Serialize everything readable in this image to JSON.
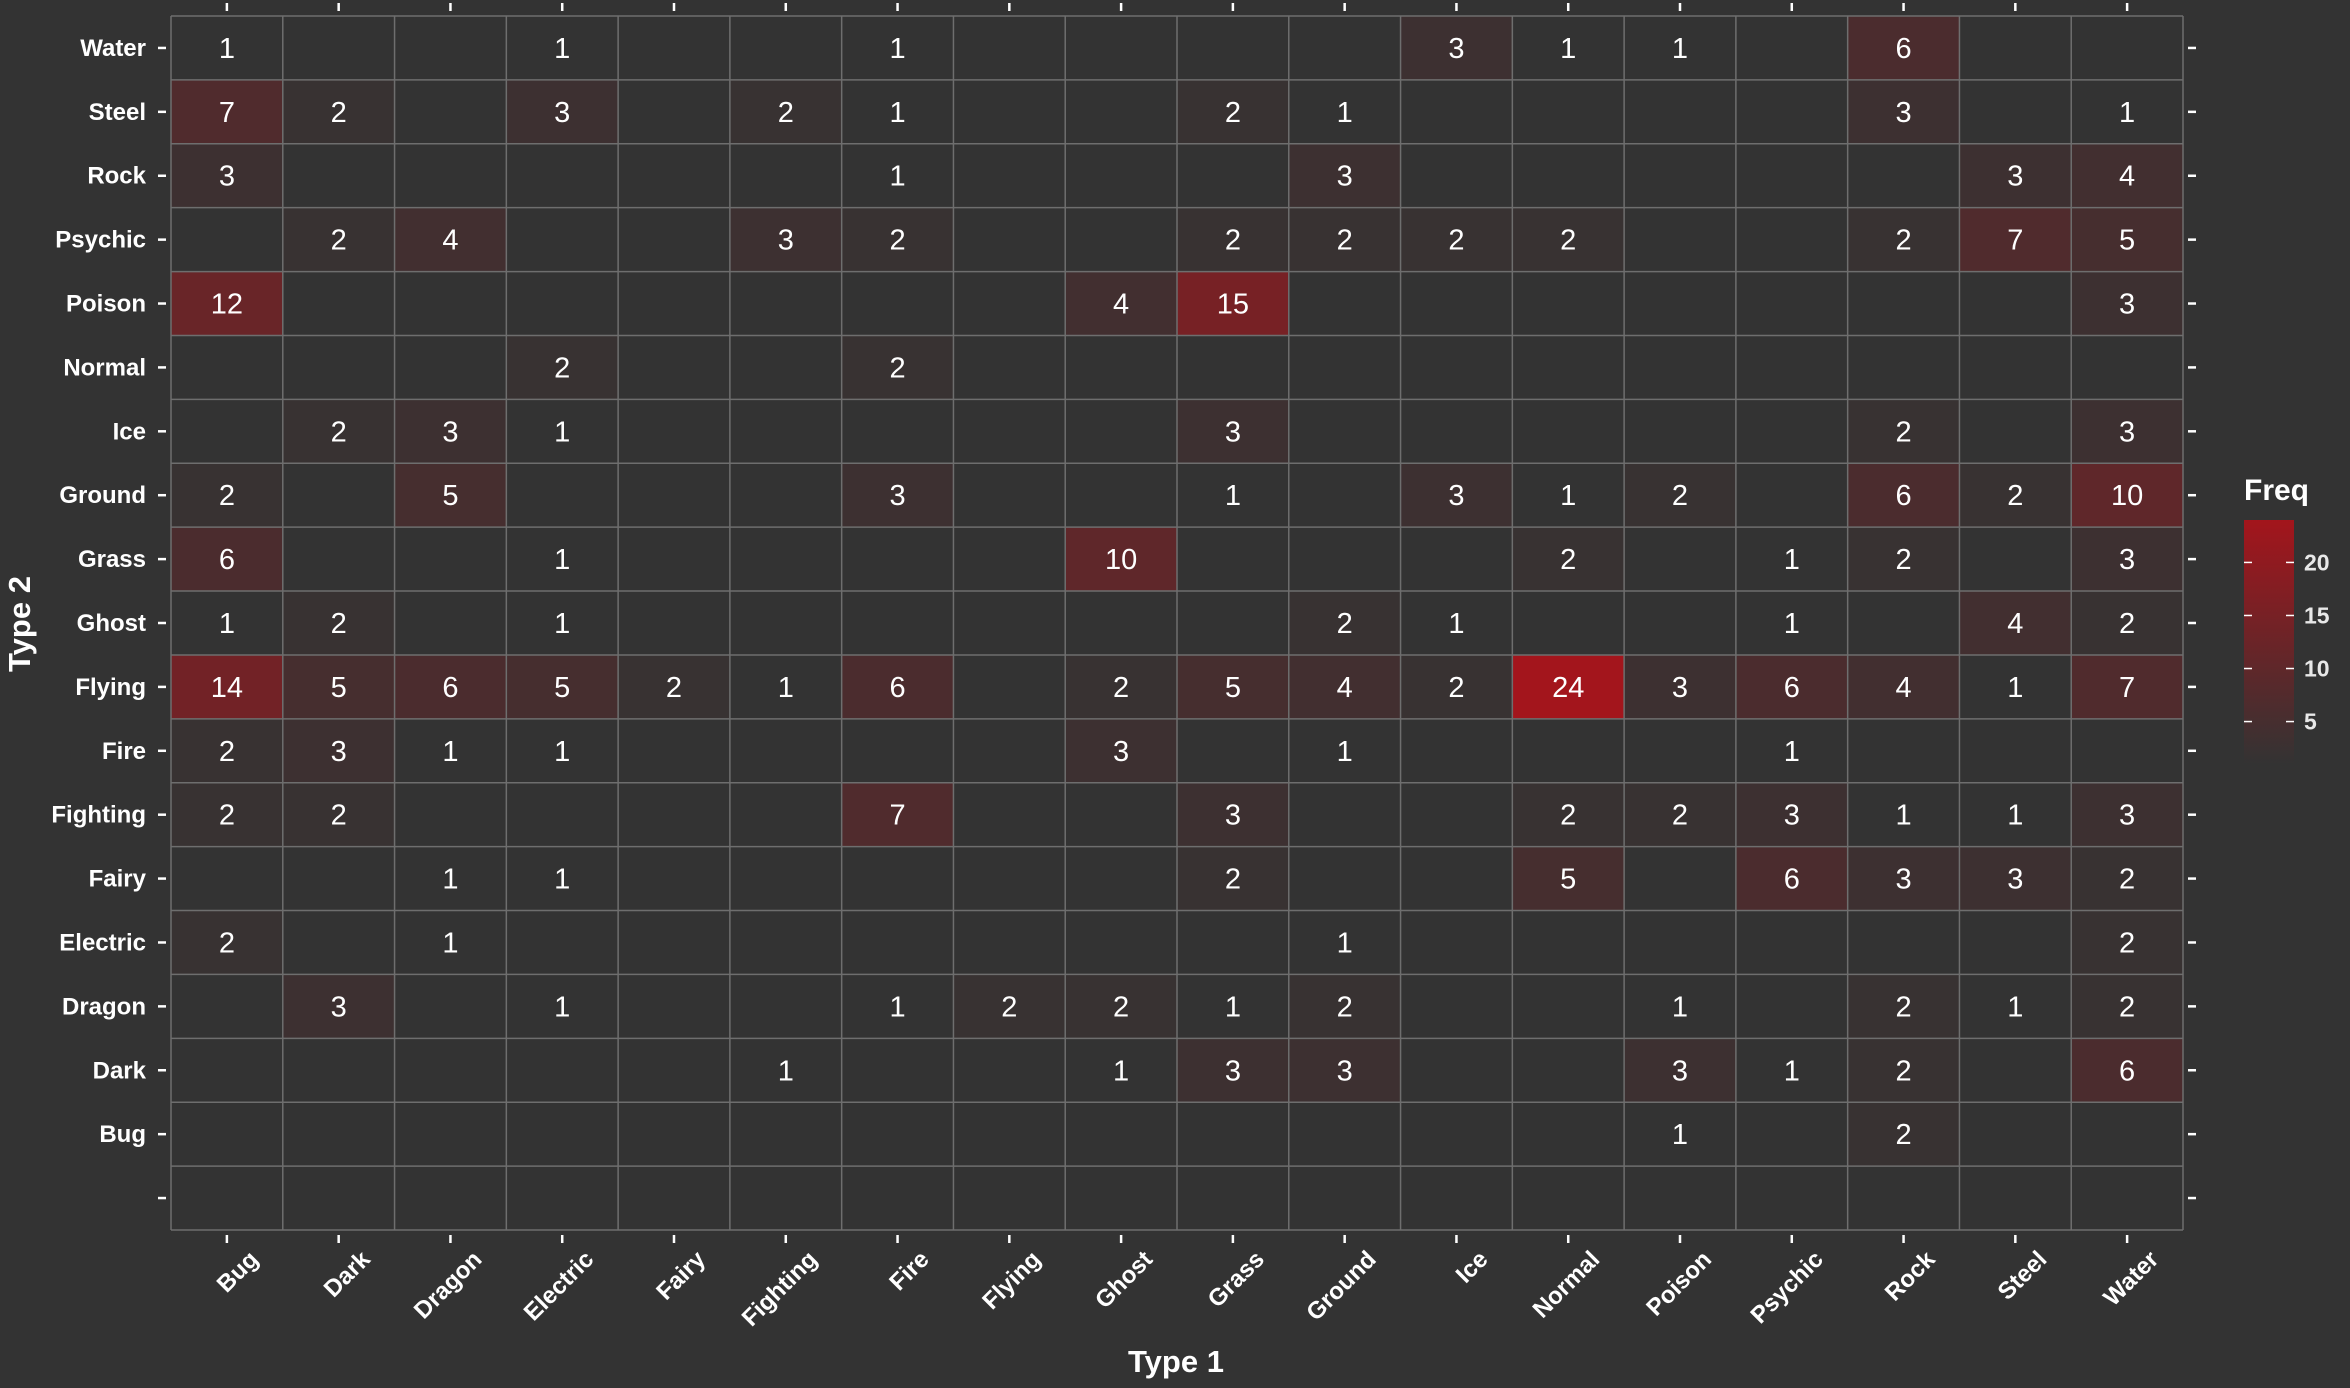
{
  "chart_data": {
    "type": "heatmap",
    "xlabel": "Type 1",
    "ylabel": "Type 2",
    "x_categories": [
      "Bug",
      "Dark",
      "Dragon",
      "Electric",
      "Fairy",
      "Fighting",
      "Fire",
      "Flying",
      "Ghost",
      "Grass",
      "Ground",
      "Ice",
      "Normal",
      "Poison",
      "Psychic",
      "Rock",
      "Steel",
      "Water"
    ],
    "y_categories": [
      "Water",
      "Steel",
      "Rock",
      "Psychic",
      "Poison",
      "Normal",
      "Ice",
      "Ground",
      "Grass",
      "Ghost",
      "Flying",
      "Fire",
      "Fighting",
      "Fairy",
      "Electric",
      "Dragon",
      "Dark",
      "Bug",
      ""
    ],
    "cells": [
      {
        "x": "Bug",
        "y": "Water",
        "value": 1
      },
      {
        "x": "Electric",
        "y": "Water",
        "value": 1
      },
      {
        "x": "Fire",
        "y": "Water",
        "value": 1
      },
      {
        "x": "Ice",
        "y": "Water",
        "value": 3
      },
      {
        "x": "Normal",
        "y": "Water",
        "value": 1
      },
      {
        "x": "Poison",
        "y": "Water",
        "value": 1
      },
      {
        "x": "Rock",
        "y": "Water",
        "value": 6
      },
      {
        "x": "Bug",
        "y": "Steel",
        "value": 7
      },
      {
        "x": "Dark",
        "y": "Steel",
        "value": 2
      },
      {
        "x": "Electric",
        "y": "Steel",
        "value": 3
      },
      {
        "x": "Fighting",
        "y": "Steel",
        "value": 2
      },
      {
        "x": "Fire",
        "y": "Steel",
        "value": 1
      },
      {
        "x": "Grass",
        "y": "Steel",
        "value": 2
      },
      {
        "x": "Ground",
        "y": "Steel",
        "value": 1
      },
      {
        "x": "Rock",
        "y": "Steel",
        "value": 3
      },
      {
        "x": "Water",
        "y": "Steel",
        "value": 1
      },
      {
        "x": "Bug",
        "y": "Rock",
        "value": 3
      },
      {
        "x": "Fire",
        "y": "Rock",
        "value": 1
      },
      {
        "x": "Ground",
        "y": "Rock",
        "value": 3
      },
      {
        "x": "Steel",
        "y": "Rock",
        "value": 3
      },
      {
        "x": "Water",
        "y": "Rock",
        "value": 4
      },
      {
        "x": "Dark",
        "y": "Psychic",
        "value": 2
      },
      {
        "x": "Dragon",
        "y": "Psychic",
        "value": 4
      },
      {
        "x": "Fighting",
        "y": "Psychic",
        "value": 3
      },
      {
        "x": "Fire",
        "y": "Psychic",
        "value": 2
      },
      {
        "x": "Grass",
        "y": "Psychic",
        "value": 2
      },
      {
        "x": "Ground",
        "y": "Psychic",
        "value": 2
      },
      {
        "x": "Ice",
        "y": "Psychic",
        "value": 2
      },
      {
        "x": "Normal",
        "y": "Psychic",
        "value": 2
      },
      {
        "x": "Rock",
        "y": "Psychic",
        "value": 2
      },
      {
        "x": "Steel",
        "y": "Psychic",
        "value": 7
      },
      {
        "x": "Water",
        "y": "Psychic",
        "value": 5
      },
      {
        "x": "Bug",
        "y": "Poison",
        "value": 12
      },
      {
        "x": "Ghost",
        "y": "Poison",
        "value": 4
      },
      {
        "x": "Grass",
        "y": "Poison",
        "value": 15
      },
      {
        "x": "Water",
        "y": "Poison",
        "value": 3
      },
      {
        "x": "Electric",
        "y": "Normal",
        "value": 2
      },
      {
        "x": "Fire",
        "y": "Normal",
        "value": 2
      },
      {
        "x": "Dark",
        "y": "Ice",
        "value": 2
      },
      {
        "x": "Dragon",
        "y": "Ice",
        "value": 3
      },
      {
        "x": "Electric",
        "y": "Ice",
        "value": 1
      },
      {
        "x": "Grass",
        "y": "Ice",
        "value": 3
      },
      {
        "x": "Rock",
        "y": "Ice",
        "value": 2
      },
      {
        "x": "Water",
        "y": "Ice",
        "value": 3
      },
      {
        "x": "Bug",
        "y": "Ground",
        "value": 2
      },
      {
        "x": "Dragon",
        "y": "Ground",
        "value": 5
      },
      {
        "x": "Fire",
        "y": "Ground",
        "value": 3
      },
      {
        "x": "Grass",
        "y": "Ground",
        "value": 1
      },
      {
        "x": "Ice",
        "y": "Ground",
        "value": 3
      },
      {
        "x": "Normal",
        "y": "Ground",
        "value": 1
      },
      {
        "x": "Poison",
        "y": "Ground",
        "value": 2
      },
      {
        "x": "Rock",
        "y": "Ground",
        "value": 6
      },
      {
        "x": "Steel",
        "y": "Ground",
        "value": 2
      },
      {
        "x": "Water",
        "y": "Ground",
        "value": 10
      },
      {
        "x": "Bug",
        "y": "Grass",
        "value": 6
      },
      {
        "x": "Electric",
        "y": "Grass",
        "value": 1
      },
      {
        "x": "Ghost",
        "y": "Grass",
        "value": 10
      },
      {
        "x": "Normal",
        "y": "Grass",
        "value": 2
      },
      {
        "x": "Psychic",
        "y": "Grass",
        "value": 1
      },
      {
        "x": "Rock",
        "y": "Grass",
        "value": 2
      },
      {
        "x": "Water",
        "y": "Grass",
        "value": 3
      },
      {
        "x": "Bug",
        "y": "Ghost",
        "value": 1
      },
      {
        "x": "Dark",
        "y": "Ghost",
        "value": 2
      },
      {
        "x": "Electric",
        "y": "Ghost",
        "value": 1
      },
      {
        "x": "Ground",
        "y": "Ghost",
        "value": 2
      },
      {
        "x": "Ice",
        "y": "Ghost",
        "value": 1
      },
      {
        "x": "Psychic",
        "y": "Ghost",
        "value": 1
      },
      {
        "x": "Steel",
        "y": "Ghost",
        "value": 4
      },
      {
        "x": "Water",
        "y": "Ghost",
        "value": 2
      },
      {
        "x": "Bug",
        "y": "Flying",
        "value": 14
      },
      {
        "x": "Dark",
        "y": "Flying",
        "value": 5
      },
      {
        "x": "Dragon",
        "y": "Flying",
        "value": 6
      },
      {
        "x": "Electric",
        "y": "Flying",
        "value": 5
      },
      {
        "x": "Fairy",
        "y": "Flying",
        "value": 2
      },
      {
        "x": "Fighting",
        "y": "Flying",
        "value": 1
      },
      {
        "x": "Fire",
        "y": "Flying",
        "value": 6
      },
      {
        "x": "Ghost",
        "y": "Flying",
        "value": 2
      },
      {
        "x": "Grass",
        "y": "Flying",
        "value": 5
      },
      {
        "x": "Ground",
        "y": "Flying",
        "value": 4
      },
      {
        "x": "Ice",
        "y": "Flying",
        "value": 2
      },
      {
        "x": "Normal",
        "y": "Flying",
        "value": 24
      },
      {
        "x": "Poison",
        "y": "Flying",
        "value": 3
      },
      {
        "x": "Psychic",
        "y": "Flying",
        "value": 6
      },
      {
        "x": "Rock",
        "y": "Flying",
        "value": 4
      },
      {
        "x": "Steel",
        "y": "Flying",
        "value": 1
      },
      {
        "x": "Water",
        "y": "Flying",
        "value": 7
      },
      {
        "x": "Bug",
        "y": "Fire",
        "value": 2
      },
      {
        "x": "Dark",
        "y": "Fire",
        "value": 3
      },
      {
        "x": "Dragon",
        "y": "Fire",
        "value": 1
      },
      {
        "x": "Electric",
        "y": "Fire",
        "value": 1
      },
      {
        "x": "Ghost",
        "y": "Fire",
        "value": 3
      },
      {
        "x": "Ground",
        "y": "Fire",
        "value": 1
      },
      {
        "x": "Psychic",
        "y": "Fire",
        "value": 1
      },
      {
        "x": "Bug",
        "y": "Fighting",
        "value": 2
      },
      {
        "x": "Dark",
        "y": "Fighting",
        "value": 2
      },
      {
        "x": "Fire",
        "y": "Fighting",
        "value": 7
      },
      {
        "x": "Grass",
        "y": "Fighting",
        "value": 3
      },
      {
        "x": "Normal",
        "y": "Fighting",
        "value": 2
      },
      {
        "x": "Poison",
        "y": "Fighting",
        "value": 2
      },
      {
        "x": "Psychic",
        "y": "Fighting",
        "value": 3
      },
      {
        "x": "Rock",
        "y": "Fighting",
        "value": 1
      },
      {
        "x": "Steel",
        "y": "Fighting",
        "value": 1
      },
      {
        "x": "Water",
        "y": "Fighting",
        "value": 3
      },
      {
        "x": "Dragon",
        "y": "Fairy",
        "value": 1
      },
      {
        "x": "Electric",
        "y": "Fairy",
        "value": 1
      },
      {
        "x": "Grass",
        "y": "Fairy",
        "value": 2
      },
      {
        "x": "Normal",
        "y": "Fairy",
        "value": 5
      },
      {
        "x": "Psychic",
        "y": "Fairy",
        "value": 6
      },
      {
        "x": "Rock",
        "y": "Fairy",
        "value": 3
      },
      {
        "x": "Steel",
        "y": "Fairy",
        "value": 3
      },
      {
        "x": "Water",
        "y": "Fairy",
        "value": 2
      },
      {
        "x": "Bug",
        "y": "Electric",
        "value": 2
      },
      {
        "x": "Dragon",
        "y": "Electric",
        "value": 1
      },
      {
        "x": "Ground",
        "y": "Electric",
        "value": 1
      },
      {
        "x": "Water",
        "y": "Electric",
        "value": 2
      },
      {
        "x": "Dark",
        "y": "Dragon",
        "value": 3
      },
      {
        "x": "Electric",
        "y": "Dragon",
        "value": 1
      },
      {
        "x": "Fire",
        "y": "Dragon",
        "value": 1
      },
      {
        "x": "Flying",
        "y": "Dragon",
        "value": 2
      },
      {
        "x": "Ghost",
        "y": "Dragon",
        "value": 2
      },
      {
        "x": "Grass",
        "y": "Dragon",
        "value": 1
      },
      {
        "x": "Ground",
        "y": "Dragon",
        "value": 2
      },
      {
        "x": "Poison",
        "y": "Dragon",
        "value": 1
      },
      {
        "x": "Rock",
        "y": "Dragon",
        "value": 2
      },
      {
        "x": "Steel",
        "y": "Dragon",
        "value": 1
      },
      {
        "x": "Water",
        "y": "Dragon",
        "value": 2
      },
      {
        "x": "Fighting",
        "y": "Dark",
        "value": 1
      },
      {
        "x": "Ghost",
        "y": "Dark",
        "value": 1
      },
      {
        "x": "Grass",
        "y": "Dark",
        "value": 3
      },
      {
        "x": "Ground",
        "y": "Dark",
        "value": 3
      },
      {
        "x": "Poison",
        "y": "Dark",
        "value": 3
      },
      {
        "x": "Psychic",
        "y": "Dark",
        "value": 1
      },
      {
        "x": "Rock",
        "y": "Dark",
        "value": 2
      },
      {
        "x": "Water",
        "y": "Dark",
        "value": 6
      },
      {
        "x": "Poison",
        "y": "Bug",
        "value": 1
      },
      {
        "x": "Rock",
        "y": "Bug",
        "value": 2
      }
    ],
    "legend": {
      "title": "Freq",
      "ticks": [
        5,
        10,
        15,
        20
      ],
      "range": [
        1,
        24
      ],
      "low_color": "#333333",
      "high_color": "#a3151c"
    },
    "grid": true,
    "legend_position": "right"
  },
  "colors": {
    "background": "#333333",
    "grid_line": "#6e6e6e",
    "text": "#ffffff"
  }
}
